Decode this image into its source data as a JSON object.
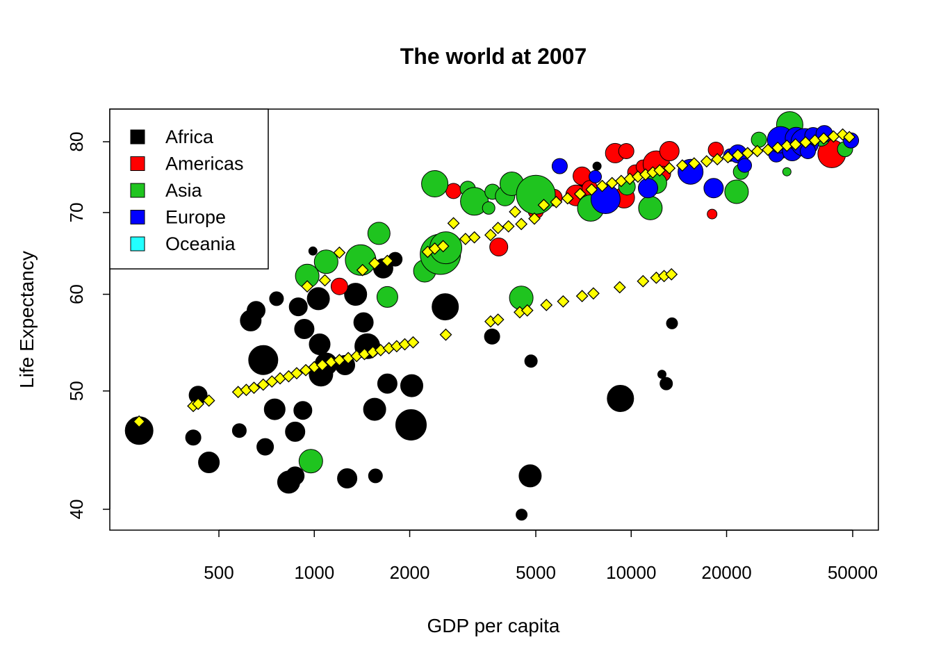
{
  "chart_data": {
    "type": "scatter",
    "title": "The world at 2007",
    "xlabel": "GDP per capita",
    "ylabel": "Life Expectancy",
    "x_scale": "log",
    "y_scale": "log",
    "xlim": [
      250,
      60000
    ],
    "ylim": [
      38,
      84
    ],
    "x_ticks": [
      500,
      1000,
      2000,
      5000,
      10000,
      20000,
      50000
    ],
    "x_tick_labels": [
      "500",
      "1000",
      "2000",
      "5000",
      "10000",
      "20000",
      "50000"
    ],
    "y_ticks": [
      40,
      50,
      60,
      70,
      80
    ],
    "y_tick_labels": [
      "40",
      "50",
      "60",
      "70",
      "80"
    ],
    "legend_position": "top-left",
    "legend": [
      {
        "label": "Africa",
        "color": "#000000"
      },
      {
        "label": "Americas",
        "color": "#ff0000"
      },
      {
        "label": "Asia",
        "color": "#1fc41f"
      },
      {
        "label": "Europe",
        "color": "#0000ff"
      },
      {
        "label": "Oceania",
        "color": "#22ffff"
      }
    ],
    "series": [
      {
        "name": "Africa",
        "color": "#000000",
        "points": [
          [
            280,
            46.4,
            20
          ],
          [
            415,
            45.8,
            11
          ],
          [
            430,
            49.6,
            13
          ],
          [
            465,
            43.7,
            15
          ],
          [
            580,
            46.4,
            10
          ],
          [
            630,
            57.1,
            15
          ],
          [
            655,
            58.2,
            13
          ],
          [
            690,
            53.0,
            21
          ],
          [
            700,
            45.0,
            12
          ],
          [
            750,
            48.3,
            15
          ],
          [
            760,
            59.5,
            10
          ],
          [
            830,
            42.1,
            16
          ],
          [
            870,
            42.6,
            13
          ],
          [
            870,
            46.3,
            14
          ],
          [
            890,
            58.6,
            13
          ],
          [
            920,
            48.2,
            13
          ],
          [
            930,
            56.2,
            14
          ],
          [
            990,
            65.1,
            6
          ],
          [
            1030,
            59.5,
            16
          ],
          [
            1040,
            54.6,
            15
          ],
          [
            1050,
            51.6,
            17
          ],
          [
            1090,
            52.6,
            16
          ],
          [
            1250,
            52.5,
            14
          ],
          [
            1270,
            42.4,
            14
          ],
          [
            1350,
            60.0,
            16
          ],
          [
            1430,
            56.9,
            14
          ],
          [
            1470,
            54.4,
            18
          ],
          [
            1550,
            48.3,
            16
          ],
          [
            1560,
            42.6,
            10
          ],
          [
            1650,
            63.0,
            14
          ],
          [
            1700,
            50.7,
            14
          ],
          [
            1800,
            64.1,
            10
          ],
          [
            2030,
            50.5,
            16
          ],
          [
            2020,
            46.9,
            22
          ],
          [
            2590,
            58.6,
            19
          ],
          [
            3640,
            55.4,
            11
          ],
          [
            4510,
            39.6,
            8
          ],
          [
            4800,
            42.6,
            16
          ],
          [
            4830,
            52.9,
            9
          ],
          [
            7200,
            74.0,
            10
          ],
          [
            7800,
            76.4,
            6
          ],
          [
            9250,
            49.3,
            19
          ],
          [
            12500,
            51.6,
            6
          ],
          [
            12900,
            50.7,
            9
          ],
          [
            13450,
            56.8,
            8
          ]
        ]
      },
      {
        "name": "Americas",
        "color": "#ff0000",
        "points": [
          [
            1200,
            60.9,
            12
          ],
          [
            2750,
            72.9,
            11
          ],
          [
            3820,
            65.6,
            13
          ],
          [
            5000,
            70.2,
            11
          ],
          [
            5200,
            72.9,
            10
          ],
          [
            5700,
            72.0,
            12
          ],
          [
            6700,
            72.3,
            15
          ],
          [
            7000,
            75.0,
            13
          ],
          [
            7400,
            73.3,
            11
          ],
          [
            8900,
            78.3,
            14
          ],
          [
            9500,
            72.0,
            15
          ],
          [
            9650,
            78.6,
            11
          ],
          [
            10300,
            75.5,
            11
          ],
          [
            10900,
            76.3,
            10
          ],
          [
            12000,
            76.7,
            19
          ],
          [
            12600,
            75.3,
            11
          ],
          [
            13200,
            78.6,
            14
          ],
          [
            18000,
            69.8,
            7
          ],
          [
            18500,
            78.8,
            11
          ],
          [
            42950,
            78.2,
            20
          ]
        ]
      },
      {
        "name": "Asia",
        "color": "#1fc41f",
        "points": [
          [
            975,
            43.8,
            17
          ],
          [
            950,
            62.1,
            17
          ],
          [
            1090,
            63.8,
            17
          ],
          [
            1400,
            64.0,
            22
          ],
          [
            1600,
            67.3,
            16
          ],
          [
            1700,
            59.7,
            15
          ],
          [
            2230,
            62.7,
            16
          ],
          [
            2400,
            73.9,
            19
          ],
          [
            2500,
            64.7,
            29
          ],
          [
            2600,
            65.5,
            23
          ],
          [
            3050,
            73.2,
            11
          ],
          [
            3200,
            71.5,
            20
          ],
          [
            3550,
            70.6,
            9
          ],
          [
            3650,
            72.8,
            11
          ],
          [
            4000,
            72.2,
            14
          ],
          [
            4200,
            73.9,
            17
          ],
          [
            4500,
            59.6,
            17
          ],
          [
            5000,
            72.4,
            28
          ],
          [
            7450,
            70.6,
            19
          ],
          [
            9700,
            73.5,
            12
          ],
          [
            11500,
            70.6,
            17
          ],
          [
            12000,
            74.0,
            15
          ],
          [
            21500,
            72.8,
            17
          ],
          [
            22200,
            75.6,
            11
          ],
          [
            25300,
            80.3,
            11
          ],
          [
            29800,
            79.0,
            14
          ],
          [
            31000,
            75.6,
            6
          ],
          [
            31650,
            82.6,
            19
          ],
          [
            34000,
            79.9,
            15
          ],
          [
            36300,
            80.0,
            14
          ],
          [
            39700,
            80.7,
            13
          ],
          [
            47300,
            78.9,
            11
          ]
        ]
      },
      {
        "name": "Europe",
        "color": "#0000ff",
        "points": [
          [
            5950,
            76.4,
            11
          ],
          [
            7700,
            74.9,
            9
          ],
          [
            8300,
            71.8,
            21
          ],
          [
            11300,
            73.3,
            14
          ],
          [
            15390,
            75.6,
            18
          ],
          [
            18200,
            73.3,
            14
          ],
          [
            20500,
            78.0,
            9
          ],
          [
            21700,
            78.2,
            13
          ],
          [
            22800,
            76.5,
            10
          ],
          [
            28700,
            78.1,
            11
          ],
          [
            29600,
            80.3,
            19
          ],
          [
            32200,
            78.6,
            14
          ],
          [
            33200,
            80.5,
            16
          ],
          [
            34500,
            79.4,
            11
          ],
          [
            35300,
            79.9,
            20
          ],
          [
            36100,
            78.6,
            11
          ],
          [
            37500,
            80.9,
            12
          ],
          [
            40700,
            81.2,
            12
          ],
          [
            49400,
            80.2,
            11
          ]
        ]
      }
    ],
    "trend_lines": [
      {
        "name": "upper",
        "marker": "diamond",
        "color": "#ffff00",
        "points": [
          [
            950,
            60.9
          ],
          [
            1080,
            61.6
          ],
          [
            1200,
            64.9
          ],
          [
            1420,
            62.8
          ],
          [
            1550,
            63.6
          ],
          [
            1700,
            63.9
          ],
          [
            2280,
            65.0
          ],
          [
            2400,
            65.4
          ],
          [
            2550,
            65.7
          ],
          [
            2750,
            68.6
          ],
          [
            3000,
            66.6
          ],
          [
            3200,
            66.8
          ],
          [
            3600,
            67.1
          ],
          [
            3800,
            68.0
          ],
          [
            4100,
            68.2
          ],
          [
            4300,
            70.1
          ],
          [
            4500,
            68.5
          ],
          [
            4950,
            69.2
          ],
          [
            5300,
            71.0
          ],
          [
            5800,
            71.4
          ],
          [
            6300,
            71.9
          ],
          [
            6900,
            72.5
          ],
          [
            7500,
            73.1
          ],
          [
            8100,
            73.6
          ],
          [
            8700,
            74.0
          ],
          [
            9300,
            74.3
          ],
          [
            9900,
            74.6
          ],
          [
            10500,
            74.9
          ],
          [
            11100,
            75.2
          ],
          [
            11700,
            75.5
          ],
          [
            12300,
            75.8
          ],
          [
            13200,
            76.1
          ],
          [
            14500,
            76.5
          ],
          [
            15800,
            76.8
          ],
          [
            17300,
            77.1
          ],
          [
            18700,
            77.4
          ],
          [
            20200,
            77.7
          ],
          [
            21700,
            78.0
          ],
          [
            23300,
            78.3
          ],
          [
            25000,
            78.6
          ],
          [
            27000,
            78.8
          ],
          [
            29000,
            79.1
          ],
          [
            31000,
            79.4
          ],
          [
            33000,
            79.6
          ],
          [
            35500,
            79.9
          ],
          [
            38000,
            80.2
          ],
          [
            40500,
            80.5
          ],
          [
            43500,
            80.8
          ],
          [
            46500,
            81.1
          ],
          [
            48800,
            80.7
          ]
        ]
      },
      {
        "name": "lower",
        "marker": "diamond",
        "color": "#ffff00",
        "points": [
          [
            280,
            47.2
          ],
          [
            415,
            48.6
          ],
          [
            430,
            48.8
          ],
          [
            465,
            49.1
          ],
          [
            575,
            49.9
          ],
          [
            610,
            50.1
          ],
          [
            645,
            50.3
          ],
          [
            690,
            50.6
          ],
          [
            735,
            50.9
          ],
          [
            780,
            51.2
          ],
          [
            830,
            51.4
          ],
          [
            880,
            51.7
          ],
          [
            940,
            52.0
          ],
          [
            1000,
            52.3
          ],
          [
            1060,
            52.5
          ],
          [
            1130,
            52.8
          ],
          [
            1200,
            53.0
          ],
          [
            1280,
            53.2
          ],
          [
            1360,
            53.4
          ],
          [
            1440,
            53.6
          ],
          [
            1530,
            53.8
          ],
          [
            1620,
            54.0
          ],
          [
            1720,
            54.2
          ],
          [
            1820,
            54.4
          ],
          [
            1930,
            54.6
          ],
          [
            2050,
            54.8
          ],
          [
            2600,
            55.6
          ],
          [
            3600,
            57.0
          ],
          [
            3800,
            57.2
          ],
          [
            4450,
            58.0
          ],
          [
            4700,
            58.2
          ],
          [
            5400,
            58.8
          ],
          [
            6100,
            59.2
          ],
          [
            7000,
            59.8
          ],
          [
            7600,
            60.1
          ],
          [
            9200,
            60.8
          ],
          [
            10900,
            61.5
          ],
          [
            12000,
            61.9
          ],
          [
            12700,
            62.1
          ],
          [
            13400,
            62.3
          ]
        ]
      }
    ]
  }
}
